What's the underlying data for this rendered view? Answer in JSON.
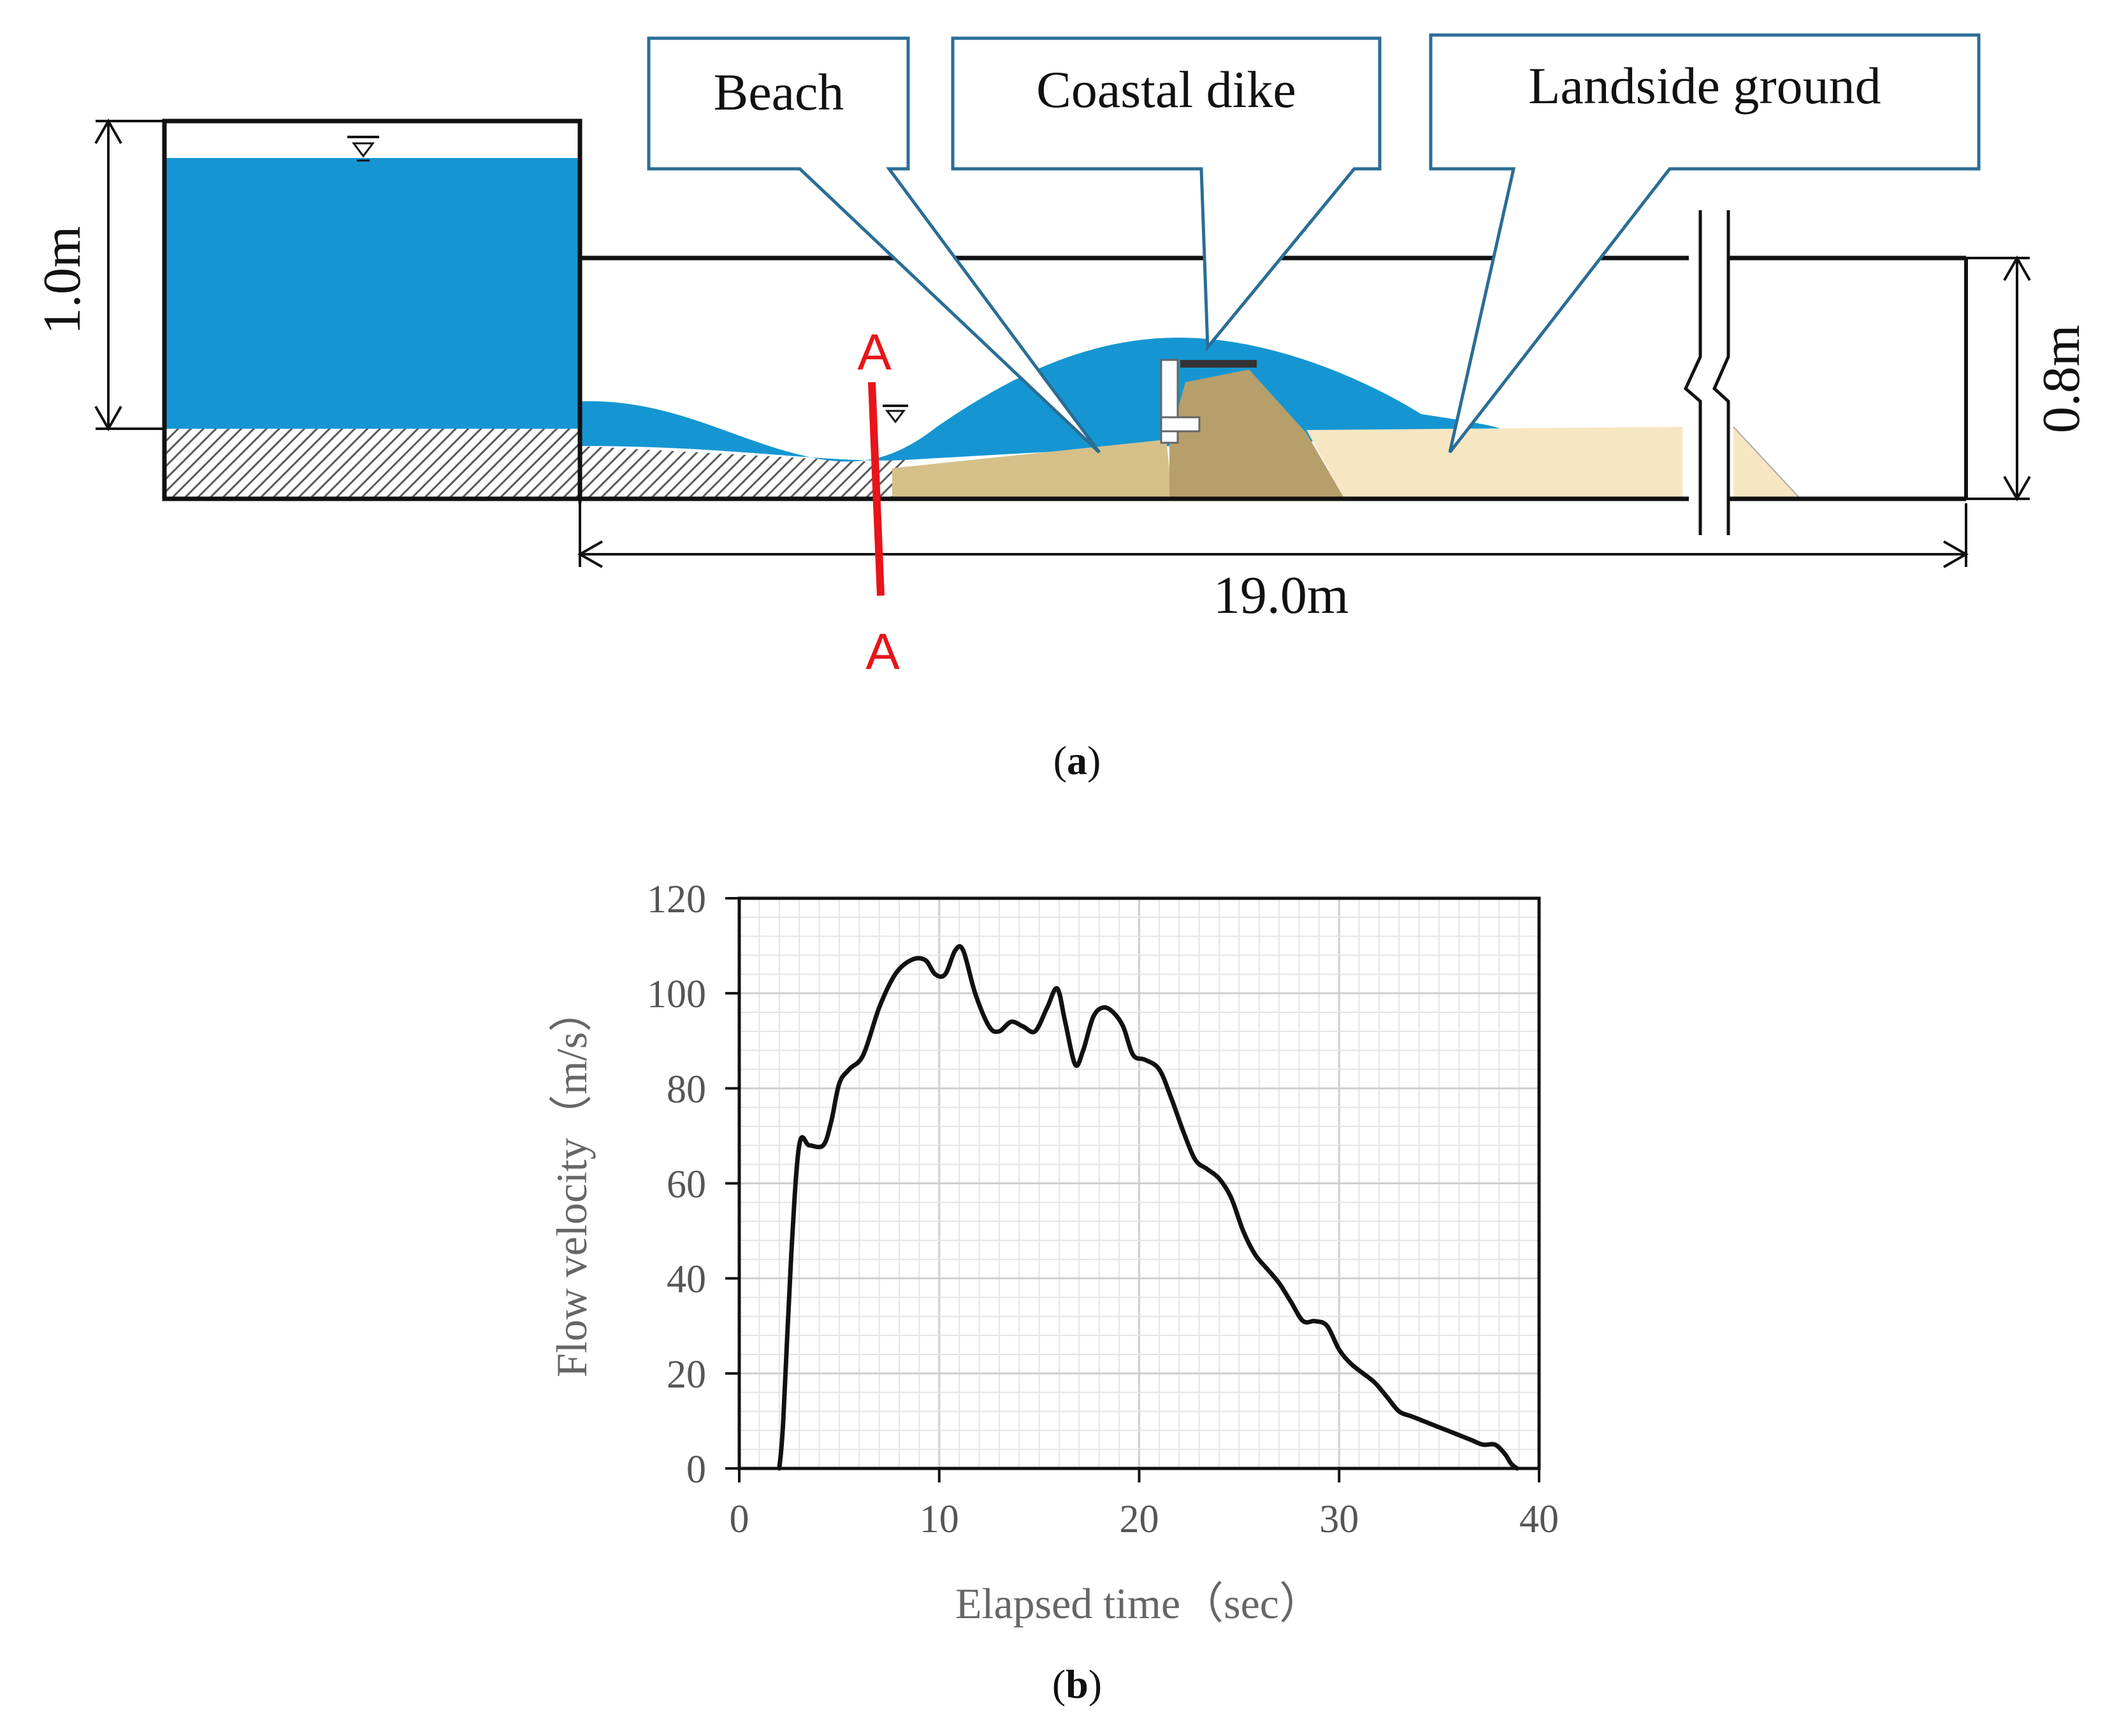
{
  "panel_a": {
    "callouts": {
      "beach": "Beach",
      "coastal_dike": "Coastal dike",
      "landside_ground": "Landside ground"
    },
    "dimensions": {
      "reservoir_height": "1.0m",
      "channel_height": "0.8m",
      "channel_length": "19.0m"
    },
    "section_marker": {
      "top": "A",
      "bottom": "A"
    },
    "caption_letter": "a"
  },
  "panel_b": {
    "caption_letter": "b"
  },
  "colors": {
    "water": "#1596d2",
    "sand": "#d6c08a",
    "dike": "#b79f6b",
    "landside": "#f7e6c2",
    "callout_border": "#2a6d95",
    "section_line": "#e8141a",
    "curve": "#111111"
  },
  "chart_data": {
    "type": "line",
    "title": "",
    "xlabel": "Elapsed time（sec）",
    "ylabel": "Flow velocity（m/s）",
    "xlim": [
      0,
      40
    ],
    "ylim": [
      0,
      120
    ],
    "x_ticks": [
      "0",
      "10",
      "20",
      "30",
      "40"
    ],
    "y_ticks": [
      "0",
      "20",
      "40",
      "60",
      "80",
      "100",
      "120"
    ],
    "grid": true,
    "legend": "none",
    "series": [
      {
        "x": [
          2.0,
          2.2,
          2.6,
          3.0,
          3.5,
          4.2,
          4.6,
          5.0,
          5.5,
          6.2,
          7.0,
          7.8,
          8.6,
          9.3,
          9.8,
          10.3,
          10.8,
          11.2,
          11.8,
          12.5,
          13.0,
          13.6,
          14.2,
          14.8,
          15.4,
          15.9,
          16.3,
          16.8,
          17.2,
          17.7,
          18.2,
          18.7,
          19.2,
          19.7,
          20.3,
          21.0,
          21.6,
          22.2,
          22.8,
          23.4,
          24.0,
          24.6,
          25.2,
          25.8,
          26.4,
          27.0,
          27.6,
          28.2,
          28.8,
          29.4,
          30.0,
          30.6,
          31.2,
          31.8,
          32.4,
          33.0,
          33.6,
          34.2,
          34.8,
          35.4,
          36.0,
          36.6,
          37.2,
          37.8,
          38.3,
          38.6,
          38.9
        ],
        "y": [
          0,
          10,
          45,
          68,
          68,
          68,
          73,
          81,
          84,
          87,
          97,
          104,
          107,
          107,
          104,
          104,
          109,
          109,
          100,
          93,
          92,
          94,
          93,
          92,
          97,
          101,
          94,
          85,
          88,
          95,
          97,
          96,
          93,
          87,
          86,
          84,
          78,
          71,
          65,
          63,
          61,
          57,
          50,
          45,
          42,
          39,
          35,
          31,
          31,
          30,
          25,
          22,
          20,
          18,
          15,
          12,
          11,
          10,
          9,
          8,
          7,
          6,
          5,
          5,
          3,
          1,
          0
        ]
      }
    ]
  }
}
